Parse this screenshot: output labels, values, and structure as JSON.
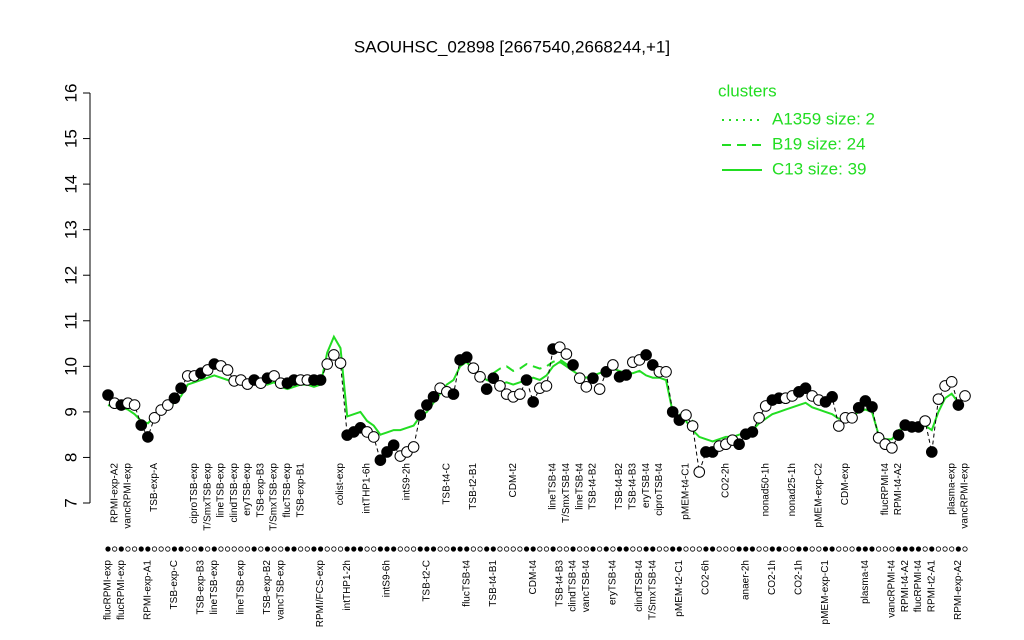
{
  "chart_data": {
    "type": "line",
    "title": "SAOUHSC_02898 [2667540,2668244,+1]",
    "categories": [
      "flucRPMI-exp",
      "RPMI-exp-A2",
      "flucRPMI-exp",
      "vancRPMI-exp",
      null,
      null,
      "RPMI-exp-A1",
      "TSB-exp-A",
      null,
      null,
      "TSB-exp-C",
      null,
      null,
      "ciproTSB-exp",
      "TSB-exp-B3",
      "T/SmxTSB-exp",
      "lineTSB-exp",
      "lineTSB-exp",
      null,
      "clindTSB-exp",
      "lineTSB-exp",
      "eryTSB-exp",
      null,
      "TSB-exp-B3",
      "TSB-exp-B2",
      "T/SmxTSB-exp",
      "vancTSB-exp",
      "flucTSB-exp",
      null,
      "TSB-exp-B1",
      null,
      null,
      "RPMI/FCS-exp",
      null,
      null,
      "colist-exp",
      "intTHP1-2h",
      null,
      null,
      "intTHP1-6h",
      null,
      null,
      "intS9-6h",
      null,
      null,
      "intS9-2h",
      null,
      null,
      "TSB-t2-C",
      null,
      null,
      "TSB-t4-C",
      null,
      null,
      "flucTSB-t4",
      "TSB-t2-B1",
      null,
      null,
      "TSB-t4-B1",
      null,
      null,
      "CDM-t2",
      null,
      null,
      "CDM-t4",
      null,
      null,
      "lineTSB-t4",
      "TSB-t4-B3",
      "T/SmxTSB-t4",
      "clindTSB-t4",
      "lineTSB-t4",
      "vancTSB-t4",
      "TSB-t4-B2",
      null,
      null,
      "eryTSB-t4",
      "TSB-t4-B2",
      null,
      "TSB-t4-B3",
      "clindTSB-t4",
      "eryTSB-t4",
      "T/SmxTSB-t4",
      "ciproTSB-t4",
      null,
      null,
      "pMEM-t2-C1",
      "pMEM-t4-C1",
      null,
      null,
      "CO2-6h",
      null,
      null,
      "CO2-2h",
      null,
      null,
      "anaer-2h",
      null,
      null,
      "nonad50-1h",
      "CO2-1h",
      null,
      null,
      "nonad25-1h",
      "CO2-1h",
      null,
      null,
      "pMEM-exp-C2",
      "pMEM-exp-C1",
      null,
      null,
      "CDM-exp",
      null,
      null,
      "plasma-t4",
      null,
      null,
      "flucRPMI-t4",
      "vancRPMI-t4",
      "RPMI-t4-A2",
      "RPMI-t4-A2",
      null,
      "flucRPMI-t4",
      null,
      "RPMI-t2-A1",
      null,
      null,
      "plasma-exp",
      "RPMI-exp-A2",
      "vancRPMI-exp"
    ],
    "values": [
      9.37,
      9.19,
      9.15,
      9.19,
      9.15,
      8.71,
      8.45,
      8.87,
      9.04,
      9.15,
      9.3,
      9.52,
      9.79,
      9.79,
      9.85,
      9.92,
      10.05,
      10.01,
      9.92,
      9.68,
      9.7,
      9.61,
      9.7,
      9.63,
      9.74,
      9.79,
      9.63,
      9.63,
      9.7,
      9.7,
      9.7,
      9.7,
      9.7,
      10.05,
      10.25,
      10.07,
      8.49,
      8.56,
      8.65,
      8.56,
      8.45,
      7.94,
      8.12,
      8.27,
      8.03,
      8.12,
      8.23,
      8.93,
      9.15,
      9.33,
      9.52,
      9.44,
      9.39,
      10.14,
      10.2,
      9.96,
      9.77,
      9.5,
      9.74,
      9.57,
      9.39,
      9.33,
      9.39,
      9.7,
      9.22,
      9.52,
      9.57,
      10.38,
      10.42,
      10.27,
      10.03,
      9.74,
      9.55,
      9.74,
      9.5,
      9.88,
      10.03,
      9.77,
      9.81,
      10.09,
      10.14,
      10.25,
      10.03,
      9.88,
      9.88,
      9.0,
      8.82,
      8.93,
      8.69,
      7.68,
      8.12,
      8.12,
      8.25,
      8.29,
      8.38,
      8.29,
      8.51,
      8.56,
      8.87,
      9.13,
      9.26,
      9.3,
      9.3,
      9.35,
      9.44,
      9.52,
      9.35,
      9.26,
      9.22,
      9.33,
      8.69,
      8.87,
      8.87,
      9.09,
      9.24,
      9.11,
      8.43,
      8.29,
      8.21,
      8.49,
      8.71,
      8.67,
      8.67,
      8.8,
      8.12,
      9.28,
      9.57,
      9.66,
      9.15,
      9.35
    ],
    "point_filled": [
      true,
      false,
      true,
      false,
      false,
      true,
      true,
      false,
      false,
      false,
      true,
      true,
      false,
      false,
      true,
      false,
      true,
      false,
      false,
      false,
      false,
      false,
      true,
      false,
      true,
      false,
      false,
      true,
      true,
      false,
      false,
      true,
      true,
      false,
      false,
      false,
      true,
      true,
      true,
      false,
      false,
      true,
      true,
      true,
      false,
      false,
      false,
      true,
      true,
      true,
      false,
      false,
      true,
      true,
      true,
      false,
      false,
      true,
      true,
      false,
      false,
      false,
      false,
      true,
      true,
      false,
      false,
      true,
      false,
      false,
      true,
      false,
      false,
      true,
      false,
      true,
      false,
      true,
      true,
      false,
      false,
      true,
      true,
      false,
      false,
      true,
      true,
      false,
      false,
      false,
      true,
      true,
      false,
      false,
      false,
      true,
      true,
      true,
      false,
      false,
      true,
      true,
      false,
      false,
      true,
      true,
      false,
      false,
      true,
      true,
      false,
      false,
      false,
      true,
      true,
      true,
      false,
      false,
      false,
      true,
      true,
      true,
      true,
      false,
      true,
      false,
      false,
      false,
      true,
      false
    ],
    "ylim": [
      7,
      16
    ],
    "yticks": [
      7,
      8,
      9,
      10,
      11,
      12,
      13,
      14,
      15,
      16
    ],
    "legend": "topright",
    "clusters": {
      "title": "clusters",
      "series": [
        {
          "name": "A1359 size: 2",
          "color": "#22dd22",
          "dash": "dotted",
          "values": [
            null,
            null,
            null,
            null,
            null,
            null,
            null,
            null,
            null,
            null,
            null,
            null,
            null,
            null,
            null,
            null,
            null,
            null,
            null,
            null,
            null,
            null,
            null,
            null,
            null,
            null,
            null,
            null,
            null,
            null,
            null,
            null,
            null,
            null,
            null,
            null,
            null,
            null,
            null,
            null,
            null,
            null,
            null,
            null,
            null,
            null,
            null,
            null,
            null,
            null,
            null,
            null,
            null,
            null,
            null,
            null,
            null,
            null,
            null,
            null,
            null,
            null,
            null,
            null,
            null,
            null,
            null,
            null,
            null,
            null,
            null,
            null,
            null,
            null,
            null,
            null,
            null,
            null,
            null,
            null,
            null,
            null,
            null,
            null,
            null,
            9.0,
            8.95,
            8.9,
            8.8,
            8.6,
            null,
            null,
            null,
            null,
            null,
            null,
            null,
            null,
            null,
            null,
            null,
            null,
            null,
            null,
            null,
            null,
            null,
            null,
            null,
            null,
            null,
            null,
            null,
            null,
            null,
            null,
            null,
            null,
            null,
            null,
            null,
            null,
            null,
            null,
            null,
            null,
            null,
            null,
            null,
            null
          ]
        },
        {
          "name": "B19 size: 24",
          "color": "#22dd22",
          "dash": "dashed",
          "values": [
            null,
            null,
            null,
            null,
            null,
            null,
            null,
            null,
            null,
            null,
            null,
            null,
            null,
            null,
            null,
            null,
            null,
            null,
            null,
            null,
            null,
            null,
            null,
            null,
            null,
            null,
            null,
            null,
            null,
            null,
            null,
            null,
            null,
            null,
            null,
            null,
            null,
            null,
            null,
            null,
            null,
            null,
            null,
            null,
            null,
            null,
            null,
            null,
            null,
            null,
            null,
            null,
            null,
            null,
            null,
            null,
            null,
            null,
            9.85,
            9.95,
            10.0,
            9.9,
            9.95,
            10.05,
            10.0,
            9.95,
            10.0,
            10.1,
            10.15,
            10.05,
            9.95,
            null,
            null,
            null,
            null,
            null,
            null,
            null,
            null,
            null,
            null,
            null,
            null,
            null,
            null,
            null,
            null,
            null,
            null,
            null,
            null,
            null,
            null,
            null,
            null,
            null,
            null,
            null,
            null,
            null,
            null,
            null,
            null,
            null,
            null,
            null,
            null,
            null,
            null,
            null,
            null,
            null,
            null,
            null,
            null,
            null,
            null,
            null,
            null,
            null,
            null,
            null,
            null,
            null,
            null,
            null,
            null,
            null,
            null,
            null
          ]
        },
        {
          "name": "C13 size: 39",
          "color": "#22dd22",
          "dash": "solid",
          "values": [
            9.15,
            9.1,
            9.1,
            9.05,
            8.95,
            8.8,
            8.75,
            8.9,
            9.0,
            9.1,
            9.2,
            9.35,
            9.6,
            9.65,
            9.7,
            9.75,
            9.8,
            9.75,
            9.7,
            9.65,
            9.65,
            9.6,
            9.65,
            9.6,
            9.6,
            9.65,
            9.55,
            9.5,
            9.55,
            9.6,
            9.6,
            9.55,
            9.6,
            10.3,
            10.65,
            10.4,
            8.9,
            8.95,
            9.0,
            8.8,
            8.7,
            8.5,
            8.55,
            8.6,
            8.6,
            8.65,
            8.7,
            8.9,
            9.0,
            9.2,
            9.4,
            9.6,
            9.7,
            10.0,
            10.1,
            9.9,
            9.8,
            9.7,
            9.65,
            9.6,
            9.65,
            9.6,
            9.65,
            9.7,
            9.75,
            9.7,
            9.8,
            10.0,
            10.1,
            10.0,
            9.9,
            9.8,
            9.75,
            9.8,
            9.85,
            9.9,
            9.95,
            9.9,
            9.85,
            9.85,
            9.9,
            9.8,
            9.75,
            9.75,
            9.7,
            9.0,
            8.9,
            8.8,
            8.6,
            8.45,
            8.4,
            8.35,
            8.4,
            8.45,
            8.45,
            8.5,
            8.55,
            8.6,
            8.75,
            8.85,
            8.95,
            9.0,
            9.05,
            9.1,
            9.15,
            9.2,
            9.1,
            9.05,
            9.0,
            8.95,
            8.85,
            8.85,
            8.9,
            9.0,
            9.05,
            9.0,
            8.5,
            8.4,
            8.4,
            8.6,
            8.65,
            8.7,
            8.75,
            8.7,
            8.6,
            9.0,
            9.3,
            9.4,
            9.2,
            9.3
          ]
        }
      ]
    }
  }
}
